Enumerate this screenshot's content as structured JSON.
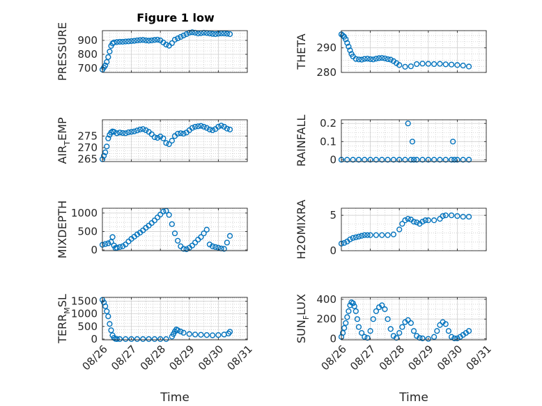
{
  "figure": {
    "title": "Figure 1 low",
    "colors": {
      "marker": "#0072BD",
      "axis": "#262626",
      "grid": "#b8b8b8",
      "background": "#ffffff"
    },
    "xticks": [
      "08/26",
      "08/27",
      "08/28",
      "08/29",
      "08/30",
      "08/31"
    ],
    "xlabel": "Time"
  },
  "chart_data": [
    {
      "type": "scatter",
      "ylabel": "PRESSURE",
      "xlim": [
        0,
        5
      ],
      "ylim": [
        670,
        970
      ],
      "yticks": [
        700,
        800,
        900
      ],
      "grid": true,
      "x": [
        0.0,
        0.05,
        0.1,
        0.15,
        0.2,
        0.25,
        0.3,
        0.35,
        0.4,
        0.5,
        0.6,
        0.7,
        0.8,
        0.9,
        1.0,
        1.1,
        1.2,
        1.3,
        1.4,
        1.5,
        1.6,
        1.7,
        1.8,
        1.9,
        2.0,
        2.1,
        2.2,
        2.3,
        2.4,
        2.5,
        2.6,
        2.7,
        2.8,
        2.9,
        3.0,
        3.1,
        3.2,
        3.3,
        3.4,
        3.5,
        3.6,
        3.7,
        3.8,
        3.9,
        4.0,
        4.1,
        4.2,
        4.3,
        4.4
      ],
      "y": [
        690,
        705,
        720,
        745,
        780,
        820,
        860,
        878,
        885,
        888,
        890,
        890,
        892,
        893,
        895,
        897,
        900,
        902,
        903,
        900,
        898,
        900,
        903,
        905,
        900,
        885,
        870,
        862,
        880,
        905,
        915,
        925,
        935,
        945,
        955,
        958,
        955,
        950,
        952,
        955,
        953,
        950,
        947,
        945,
        948,
        950,
        950,
        948,
        945
      ]
    },
    {
      "type": "scatter",
      "ylabel": "THETA",
      "xlim": [
        0,
        5
      ],
      "ylim": [
        280,
        297
      ],
      "yticks": [
        280,
        290
      ],
      "grid": true,
      "x": [
        0.0,
        0.05,
        0.1,
        0.15,
        0.2,
        0.25,
        0.3,
        0.35,
        0.4,
        0.5,
        0.6,
        0.7,
        0.8,
        0.9,
        1.0,
        1.1,
        1.2,
        1.3,
        1.4,
        1.5,
        1.6,
        1.7,
        1.8,
        1.9,
        2.0,
        2.2,
        2.4,
        2.6,
        2.8,
        3.0,
        3.2,
        3.4,
        3.6,
        3.8,
        4.0,
        4.2,
        4.4
      ],
      "y": [
        295.5,
        295,
        294.5,
        293.5,
        292,
        290.5,
        289,
        287.5,
        286.5,
        285.5,
        285.3,
        285.2,
        285.5,
        285.6,
        285.4,
        285.3,
        285.6,
        285.8,
        285.9,
        285.7,
        285.4,
        285.2,
        284.6,
        283.8,
        283.0,
        282.3,
        282.5,
        283.4,
        283.6,
        283.5,
        283.4,
        283.5,
        283.3,
        283.2,
        283.0,
        282.8,
        282.4
      ]
    },
    {
      "type": "scatter",
      "ylabel": "AIR_TEMP",
      "xlim": [
        0,
        5
      ],
      "ylim": [
        264,
        282
      ],
      "yticks": [
        265,
        270,
        275
      ],
      "grid": true,
      "x": [
        0.0,
        0.05,
        0.1,
        0.15,
        0.2,
        0.25,
        0.3,
        0.35,
        0.4,
        0.5,
        0.6,
        0.7,
        0.8,
        0.9,
        1.0,
        1.1,
        1.2,
        1.3,
        1.4,
        1.5,
        1.6,
        1.7,
        1.8,
        1.9,
        2.0,
        2.1,
        2.2,
        2.3,
        2.4,
        2.5,
        2.6,
        2.7,
        2.8,
        2.9,
        3.0,
        3.1,
        3.2,
        3.3,
        3.4,
        3.5,
        3.6,
        3.7,
        3.8,
        3.9,
        4.0,
        4.1,
        4.2,
        4.3,
        4.4
      ],
      "y": [
        265,
        266.5,
        268,
        270.5,
        274,
        275.5,
        276.5,
        277,
        276.8,
        276.2,
        276.5,
        276.3,
        276.2,
        276.6,
        276.8,
        277,
        277.4,
        277.8,
        278,
        277.5,
        276.8,
        275.8,
        274.5,
        274.2,
        274.8,
        274,
        272,
        271.5,
        273,
        275,
        276,
        276.2,
        276,
        276.5,
        277.5,
        278.5,
        279,
        279.2,
        279.4,
        279,
        278.5,
        277.8,
        277.5,
        278,
        279,
        279.5,
        279,
        278.2,
        277.8
      ]
    },
    {
      "type": "scatter",
      "ylabel": "RAINFALL",
      "xlim": [
        0,
        5
      ],
      "ylim": [
        -0.01,
        0.22
      ],
      "yticks": [
        0,
        0.1,
        0.2
      ],
      "grid": true,
      "x": [
        0.0,
        0.2,
        0.4,
        0.6,
        0.8,
        1.0,
        1.2,
        1.4,
        1.6,
        1.8,
        2.0,
        2.2,
        2.4,
        2.5,
        2.6,
        2.8,
        3.0,
        3.2,
        3.4,
        3.6,
        3.8,
        3.9,
        4.0,
        4.2,
        4.4,
        2.3,
        2.45,
        3.85
      ],
      "y": [
        0,
        0,
        0,
        0,
        0,
        0,
        0,
        0,
        0,
        0,
        0,
        0,
        0,
        0,
        0,
        0,
        0,
        0,
        0,
        0,
        0,
        0,
        0,
        0,
        0,
        0.2,
        0.1,
        0.1
      ]
    },
    {
      "type": "scatter",
      "ylabel": "MIXDEPTH",
      "xlim": [
        0,
        5
      ],
      "ylim": [
        -20,
        1130
      ],
      "yticks": [
        0,
        500,
        1000
      ],
      "grid": true,
      "x": [
        0.0,
        0.1,
        0.2,
        0.3,
        0.35,
        0.4,
        0.45,
        0.5,
        0.6,
        0.7,
        0.8,
        0.9,
        1.0,
        1.1,
        1.2,
        1.3,
        1.4,
        1.5,
        1.6,
        1.7,
        1.8,
        1.9,
        2.0,
        2.1,
        2.2,
        2.3,
        2.4,
        2.5,
        2.6,
        2.7,
        2.8,
        2.9,
        3.0,
        3.1,
        3.2,
        3.3,
        3.4,
        3.5,
        3.6,
        3.7,
        3.8,
        3.9,
        4.0,
        4.1,
        4.2,
        4.3,
        4.4
      ],
      "y": [
        140,
        160,
        180,
        220,
        350,
        120,
        50,
        60,
        80,
        100,
        150,
        230,
        300,
        360,
        420,
        470,
        530,
        600,
        660,
        730,
        800,
        880,
        960,
        1040,
        1060,
        950,
        700,
        450,
        250,
        100,
        30,
        20,
        60,
        120,
        200,
        280,
        350,
        450,
        550,
        150,
        100,
        80,
        60,
        40,
        30,
        200,
        380
      ]
    },
    {
      "type": "scatter",
      "ylabel": "H2OMIXRA",
      "xlim": [
        0,
        5
      ],
      "ylim": [
        0,
        6
      ],
      "yticks": [
        0,
        5
      ],
      "grid": true,
      "x": [
        0.0,
        0.1,
        0.2,
        0.3,
        0.4,
        0.5,
        0.6,
        0.7,
        0.8,
        0.9,
        1.0,
        1.2,
        1.4,
        1.6,
        1.8,
        2.0,
        2.1,
        2.2,
        2.3,
        2.4,
        2.5,
        2.6,
        2.7,
        2.8,
        2.9,
        3.0,
        3.2,
        3.4,
        3.5,
        3.6,
        3.8,
        4.0,
        4.2,
        4.4
      ],
      "y": [
        1.0,
        1.1,
        1.3,
        1.6,
        1.8,
        1.9,
        2.0,
        2.1,
        2.2,
        2.2,
        2.2,
        2.2,
        2.2,
        2.2,
        2.3,
        3.0,
        3.8,
        4.3,
        4.5,
        4.4,
        4.1,
        4.0,
        3.8,
        4.1,
        4.3,
        4.3,
        4.3,
        4.5,
        4.9,
        5.0,
        5.0,
        4.9,
        4.8,
        4.8
      ]
    },
    {
      "type": "scatter",
      "ylabel": "TERR_MSL",
      "xlim": [
        0,
        5
      ],
      "ylim": [
        -30,
        1650
      ],
      "yticks": [
        0,
        500,
        1000,
        1500
      ],
      "grid": true,
      "x": [
        0.0,
        0.05,
        0.1,
        0.15,
        0.2,
        0.25,
        0.3,
        0.35,
        0.4,
        0.45,
        0.5,
        0.6,
        0.8,
        1.0,
        1.2,
        1.4,
        1.6,
        1.8,
        2.0,
        2.2,
        2.4,
        2.45,
        2.5,
        2.55,
        2.6,
        2.7,
        2.8,
        3.0,
        3.2,
        3.4,
        3.6,
        3.8,
        4.0,
        4.2,
        4.35,
        4.4
      ],
      "y": [
        1550,
        1450,
        1300,
        1100,
        900,
        600,
        350,
        150,
        50,
        10,
        0,
        0,
        0,
        0,
        0,
        0,
        0,
        0,
        0,
        0,
        100,
        200,
        300,
        380,
        350,
        300,
        250,
        200,
        180,
        170,
        160,
        150,
        160,
        180,
        220,
        290
      ]
    },
    {
      "type": "scatter",
      "ylabel": "SUN_FLUX",
      "xlim": [
        0,
        5
      ],
      "ylim": [
        -10,
        420
      ],
      "yticks": [
        0,
        200,
        400
      ],
      "grid": true,
      "x": [
        0.0,
        0.05,
        0.1,
        0.15,
        0.2,
        0.25,
        0.3,
        0.35,
        0.4,
        0.45,
        0.5,
        0.55,
        0.6,
        0.7,
        0.8,
        0.9,
        1.0,
        1.1,
        1.2,
        1.3,
        1.4,
        1.5,
        1.6,
        1.7,
        1.8,
        1.9,
        2.0,
        2.1,
        2.2,
        2.3,
        2.4,
        2.5,
        2.6,
        2.7,
        2.8,
        3.0,
        3.2,
        3.3,
        3.4,
        3.5,
        3.6,
        3.7,
        3.8,
        3.9,
        4.0,
        4.1,
        4.2,
        4.3,
        4.4
      ],
      "y": [
        20,
        60,
        110,
        160,
        220,
        280,
        340,
        370,
        360,
        330,
        280,
        200,
        120,
        60,
        20,
        10,
        80,
        200,
        280,
        320,
        340,
        300,
        200,
        100,
        30,
        10,
        60,
        120,
        170,
        190,
        160,
        80,
        30,
        10,
        5,
        0,
        20,
        80,
        140,
        170,
        150,
        80,
        20,
        5,
        5,
        20,
        40,
        60,
        80
      ]
    }
  ]
}
